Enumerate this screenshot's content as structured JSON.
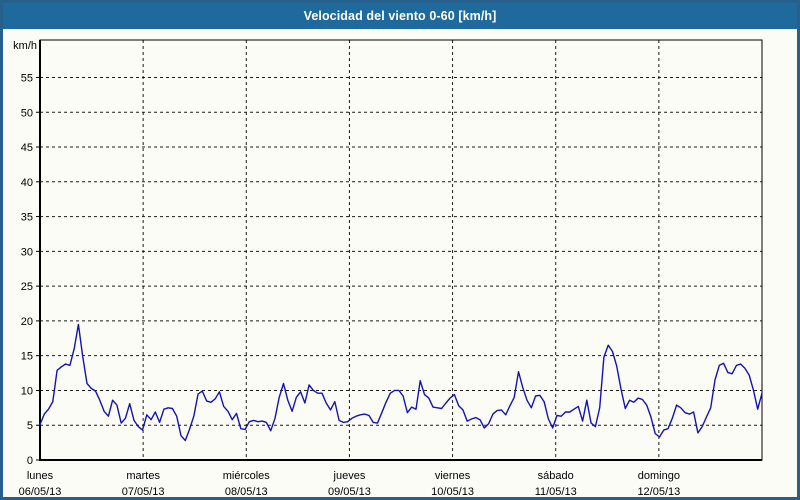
{
  "window": {
    "title": "Velocidad del viento 0-60 [km/h]"
  },
  "colors": {
    "titlebar_bg": "#1e6a9c",
    "outer_border": "#26608c",
    "page_bg": "#fcfcf6",
    "line": "#1212b8",
    "grid": "#1a1a1a",
    "axis": "#000000",
    "text": "#000000",
    "title_text": "#ffffff"
  },
  "chart_data": {
    "type": "line",
    "title": "Velocidad del viento 0-60 [km/h]",
    "unit_label": "km/h",
    "ylim": [
      0,
      60
    ],
    "ytick_step": 5,
    "yticks": [
      "0",
      "5",
      "10",
      "15",
      "20",
      "25",
      "30",
      "35",
      "40",
      "45",
      "50",
      "55"
    ],
    "grid": "dashed",
    "legend": "none",
    "x_axis_days": [
      {
        "name": "lunes",
        "date": "06/05/13"
      },
      {
        "name": "martes",
        "date": "07/05/13"
      },
      {
        "name": "miércoles",
        "date": "08/05/13"
      },
      {
        "name": "jueves",
        "date": "09/05/13"
      },
      {
        "name": "viernes",
        "date": "10/05/13"
      },
      {
        "name": "sábado",
        "date": "11/05/13"
      },
      {
        "name": "domingo",
        "date": "12/05/13"
      }
    ],
    "values": [
      5.1,
      6.6,
      7.3,
      8.4,
      12.9,
      13.4,
      13.8,
      13.6,
      16.0,
      19.5,
      14.9,
      11.0,
      10.3,
      9.9,
      8.6,
      7.0,
      6.3,
      8.6,
      7.9,
      5.3,
      6.0,
      8.1,
      5.7,
      4.8,
      4.3,
      6.5,
      5.8,
      6.9,
      5.4,
      7.3,
      7.5,
      7.4,
      6.3,
      3.5,
      2.8,
      4.4,
      6.3,
      9.5,
      9.9,
      8.5,
      8.3,
      8.8,
      9.8,
      7.7,
      7.0,
      5.8,
      6.7,
      4.5,
      4.4,
      5.5,
      5.7,
      5.5,
      5.6,
      5.4,
      4.2,
      6.0,
      9.0,
      11.0,
      8.6,
      7.0,
      9.0,
      9.8,
      8.2,
      10.8,
      10.0,
      9.6,
      9.6,
      8.2,
      7.2,
      8.4,
      5.7,
      5.4,
      5.5,
      6.0,
      6.3,
      6.5,
      6.6,
      6.4,
      5.4,
      5.3,
      6.8,
      8.3,
      9.6,
      10.0,
      10.0,
      9.2,
      6.8,
      7.6,
      7.3,
      11.4,
      9.4,
      8.9,
      7.6,
      7.5,
      7.4,
      8.2,
      8.9,
      9.4,
      7.8,
      7.2,
      5.6,
      5.9,
      6.1,
      5.8,
      4.6,
      5.2,
      6.6,
      7.1,
      7.2,
      6.5,
      7.8,
      9.0,
      12.7,
      10.4,
      8.6,
      7.5,
      9.2,
      9.3,
      8.4,
      5.9,
      4.6,
      6.4,
      6.3,
      6.9,
      6.9,
      7.3,
      7.7,
      5.6,
      8.6,
      5.3,
      4.8,
      7.5,
      14.8,
      16.5,
      15.6,
      13.5,
      10.2,
      7.4,
      8.6,
      8.3,
      8.9,
      8.7,
      7.9,
      6.2,
      3.8,
      3.3,
      4.3,
      4.5,
      6.0,
      7.9,
      7.5,
      6.8,
      6.6,
      6.9,
      3.9,
      4.8,
      6.2,
      7.5,
      11.5,
      13.6,
      13.9,
      12.6,
      12.4,
      13.6,
      13.8,
      13.2,
      12.2,
      10.0,
      7.3,
      9.6
    ]
  }
}
